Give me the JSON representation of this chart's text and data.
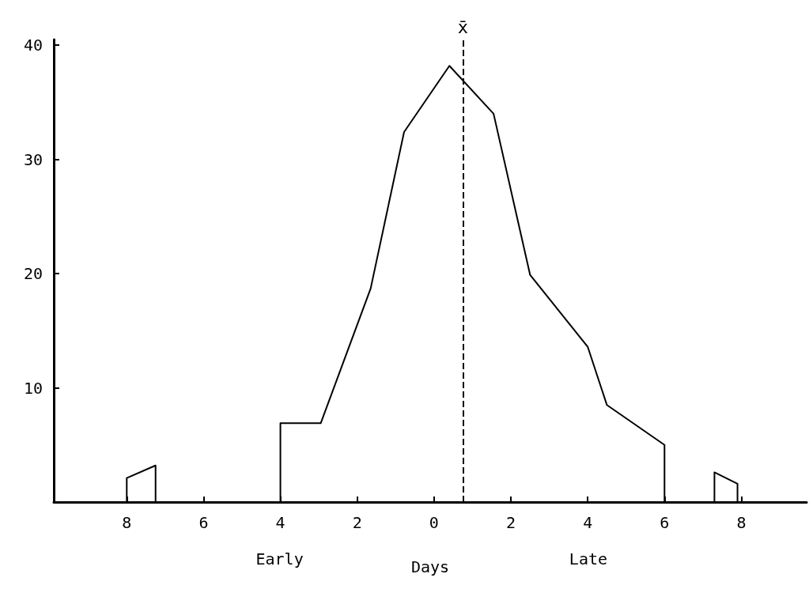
{
  "chart_data": {
    "type": "line",
    "xlabel": "Days",
    "annotations": [
      "Early",
      "Late"
    ],
    "series": [
      {
        "color": "#000000",
        "x": [
          -8,
          -8,
          -7.25,
          -7.25
        ],
        "values": [
          0,
          2.1,
          3.2,
          0
        ]
      },
      {
        "color": "#000000",
        "x": [
          -4,
          -4,
          -2.95,
          -1.65,
          -0.78,
          0.4,
          1.55,
          2.5,
          4,
          4.5,
          6,
          6
        ],
        "values": [
          0,
          6.9,
          6.9,
          18.7,
          32.4,
          38.2,
          34,
          19.9,
          13.6,
          8.5,
          5,
          0
        ]
      },
      {
        "color": "#000000",
        "x": [
          7.3,
          7.3,
          7.9,
          7.9
        ],
        "values": [
          0,
          2.6,
          1.6,
          0
        ]
      }
    ],
    "xlim": [
      -9.9,
      9.7
    ],
    "xticks": [
      {
        "value": -8,
        "label": "8"
      },
      {
        "value": -6,
        "label": "6"
      },
      {
        "value": -4,
        "label": "4"
      },
      {
        "value": -2,
        "label": "2"
      },
      0,
      2,
      4,
      6,
      8
    ],
    "ylim": [
      0,
      40.5
    ],
    "yticks": [
      10,
      20,
      30,
      40
    ],
    "ref_lines": [
      {
        "axis": "x",
        "value": 0.75,
        "label": "x̄",
        "line_style": "dashed",
        "color": "#000000"
      }
    ],
    "grid": false,
    "marker": "none",
    "line_style": "solid"
  }
}
